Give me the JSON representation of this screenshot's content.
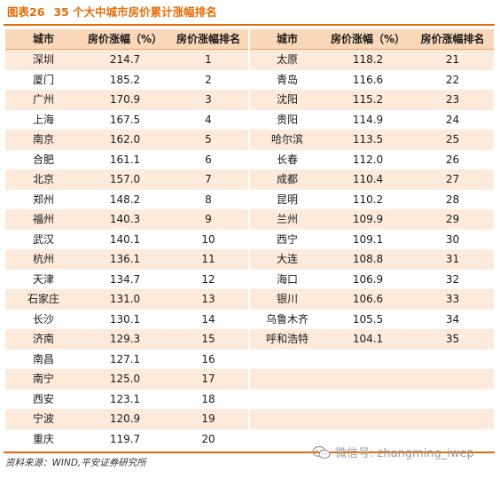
{
  "title": {
    "label": "图表26",
    "text": "35 个大中城市房价累计涨幅排名"
  },
  "headers": {
    "city": "城市",
    "increase": "房价涨幅（%）",
    "rank": "房价涨幅排名"
  },
  "left_rows": [
    {
      "city": "深圳",
      "value": "214.7",
      "rank": "1"
    },
    {
      "city": "厦门",
      "value": "185.2",
      "rank": "2"
    },
    {
      "city": "广州",
      "value": "170.9",
      "rank": "3"
    },
    {
      "city": "上海",
      "value": "167.5",
      "rank": "4"
    },
    {
      "city": "南京",
      "value": "162.0",
      "rank": "5"
    },
    {
      "city": "合肥",
      "value": "161.1",
      "rank": "6"
    },
    {
      "city": "北京",
      "value": "157.0",
      "rank": "7"
    },
    {
      "city": "郑州",
      "value": "148.2",
      "rank": "8"
    },
    {
      "city": "福州",
      "value": "140.3",
      "rank": "9"
    },
    {
      "city": "武汉",
      "value": "140.1",
      "rank": "10"
    },
    {
      "city": "杭州",
      "value": "136.1",
      "rank": "11"
    },
    {
      "city": "天津",
      "value": "134.7",
      "rank": "12"
    },
    {
      "city": "石家庄",
      "value": "131.0",
      "rank": "13"
    },
    {
      "city": "长沙",
      "value": "130.1",
      "rank": "14"
    },
    {
      "city": "济南",
      "value": "129.3",
      "rank": "15"
    },
    {
      "city": "南昌",
      "value": "127.1",
      "rank": "16"
    },
    {
      "city": "南宁",
      "value": "125.0",
      "rank": "17"
    },
    {
      "city": "西安",
      "value": "123.1",
      "rank": "18"
    },
    {
      "city": "宁波",
      "value": "120.9",
      "rank": "19"
    },
    {
      "city": "重庆",
      "value": "119.7",
      "rank": "20"
    }
  ],
  "right_rows": [
    {
      "city": "太原",
      "value": "118.2",
      "rank": "21"
    },
    {
      "city": "青岛",
      "value": "116.6",
      "rank": "22"
    },
    {
      "city": "沈阳",
      "value": "115.2",
      "rank": "23"
    },
    {
      "city": "贵阳",
      "value": "114.9",
      "rank": "24"
    },
    {
      "city": "哈尔滨",
      "value": "113.5",
      "rank": "25"
    },
    {
      "city": "长春",
      "value": "112.0",
      "rank": "26"
    },
    {
      "city": "成都",
      "value": "110.4",
      "rank": "27"
    },
    {
      "city": "昆明",
      "value": "110.2",
      "rank": "28"
    },
    {
      "city": "兰州",
      "value": "109.9",
      "rank": "29"
    },
    {
      "city": "西宁",
      "value": "109.1",
      "rank": "30"
    },
    {
      "city": "大连",
      "value": "108.8",
      "rank": "31"
    },
    {
      "city": "海口",
      "value": "106.9",
      "rank": "32"
    },
    {
      "city": "银川",
      "value": "106.6",
      "rank": "33"
    },
    {
      "city": "乌鲁木齐",
      "value": "105.5",
      "rank": "34"
    },
    {
      "city": "呼和浩特",
      "value": "104.1",
      "rank": "35"
    },
    {
      "city": "",
      "value": "",
      "rank": ""
    },
    {
      "city": "",
      "value": "",
      "rank": ""
    },
    {
      "city": "",
      "value": "",
      "rank": ""
    },
    {
      "city": "",
      "value": "",
      "rank": ""
    },
    {
      "city": "",
      "value": "",
      "rank": ""
    }
  ],
  "source": "资料来源：WIND,平安证券研究所",
  "watermark": {
    "icon": "wechat-icon",
    "text": "微信号: zhangming_iwep"
  },
  "colors": {
    "accent": "#e36c09",
    "header_bg": "#f9d7b8",
    "band_bg": "#fdeada"
  }
}
